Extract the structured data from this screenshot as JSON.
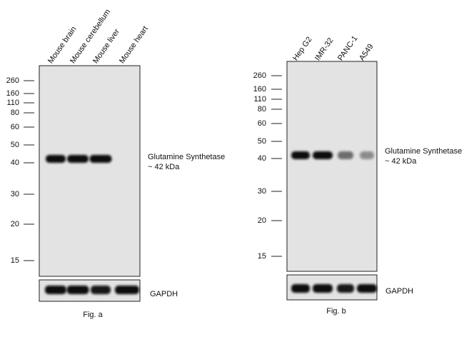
{
  "panels": [
    {
      "lanes": [
        "Mouse brain",
        "Mouse cerebellum",
        "Mouse liver",
        "Mouse heart"
      ],
      "markers": [
        "260",
        "160",
        "110",
        "80",
        "60",
        "50",
        "40",
        "30",
        "20",
        "15"
      ],
      "target": {
        "name": "Glutamine Synthetase",
        "size": "~ 42 kDa"
      },
      "loading_control": "GAPDH",
      "caption": "Fig. a"
    },
    {
      "lanes": [
        "Hep G2",
        "IMR-32",
        "PANC-1",
        "A549"
      ],
      "markers": [
        "260",
        "160",
        "110",
        "80",
        "60",
        "50",
        "40",
        "30",
        "20",
        "15"
      ],
      "target": {
        "name": "Glutamine Synthetase",
        "size": "~ 42 kDa"
      },
      "loading_control": "GAPDH",
      "caption": "Fig. b"
    }
  ]
}
